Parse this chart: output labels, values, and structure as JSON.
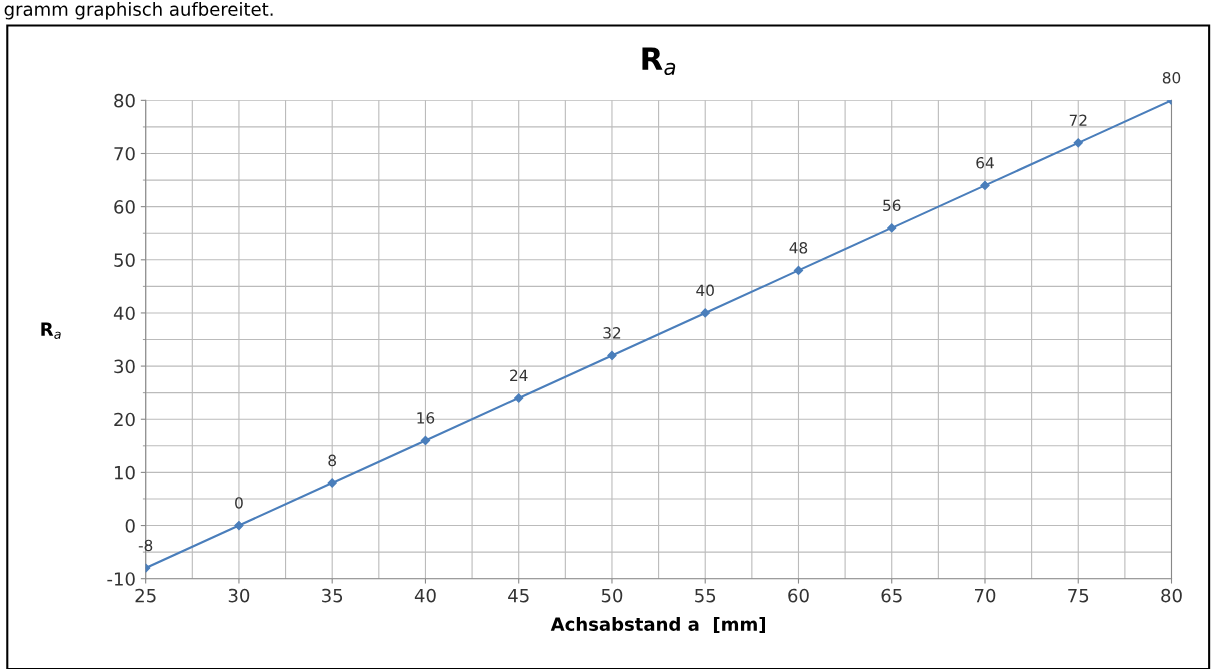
{
  "chart_data": {
    "type": "line",
    "title": "R$_{a}$",
    "xlabel": "Achsabstand a  [mm]",
    "ylabel": "R$_{a}$",
    "annotations": [
      "gramm graphisch aufbereitet."
    ],
    "x": [
      25,
      30,
      35,
      40,
      45,
      50,
      55,
      60,
      65,
      70,
      75,
      80
    ],
    "series": [
      {
        "color": "#4a7ebb",
        "values": [
          -8,
          0,
          8,
          16,
          24,
          32,
          40,
          48,
          56,
          64,
          72,
          80
        ]
      }
    ],
    "xlim": [
      25,
      80
    ],
    "xticks": [
      25,
      30,
      35,
      40,
      45,
      50,
      55,
      60,
      65,
      70,
      75,
      80
    ],
    "ylim": [
      -10,
      80
    ],
    "yticks": [
      -10,
      0,
      10,
      20,
      30,
      40,
      50,
      60,
      70,
      80
    ],
    "grid": true,
    "marker": "diamond",
    "line_style": "solid",
    "data_labels": true
  }
}
